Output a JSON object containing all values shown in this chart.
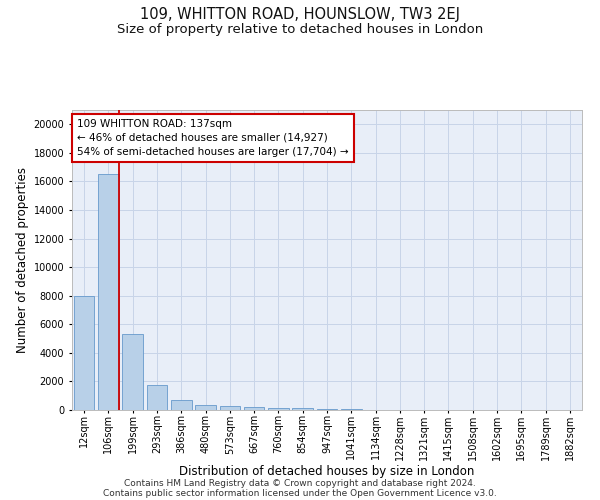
{
  "title": "109, WHITTON ROAD, HOUNSLOW, TW3 2EJ",
  "subtitle": "Size of property relative to detached houses in London",
  "xlabel": "Distribution of detached houses by size in London",
  "ylabel": "Number of detached properties",
  "categories": [
    "12sqm",
    "106sqm",
    "199sqm",
    "293sqm",
    "386sqm",
    "480sqm",
    "573sqm",
    "667sqm",
    "760sqm",
    "854sqm",
    "947sqm",
    "1041sqm",
    "1134sqm",
    "1228sqm",
    "1321sqm",
    "1415sqm",
    "1508sqm",
    "1602sqm",
    "1695sqm",
    "1789sqm",
    "1882sqm"
  ],
  "values": [
    8000,
    16500,
    5300,
    1750,
    700,
    380,
    290,
    210,
    170,
    130,
    80,
    50,
    30,
    20,
    10,
    5,
    0,
    0,
    0,
    0,
    0
  ],
  "bar_color": "#b8d0e8",
  "bar_edge_color": "#6699cc",
  "grid_color": "#c8d4e8",
  "property_line_color": "#cc0000",
  "property_line_x": 1.42,
  "annotation_line1": "109 WHITTON ROAD: 137sqm",
  "annotation_line2": "← 46% of detached houses are smaller (14,927)",
  "annotation_line3": "54% of semi-detached houses are larger (17,704) →",
  "annotation_box_facecolor": "#ffffff",
  "annotation_box_edgecolor": "#cc0000",
  "ylim": [
    0,
    21000
  ],
  "yticks": [
    0,
    2000,
    4000,
    6000,
    8000,
    10000,
    12000,
    14000,
    16000,
    18000,
    20000
  ],
  "footer_line1": "Contains HM Land Registry data © Crown copyright and database right 2024.",
  "footer_line2": "Contains public sector information licensed under the Open Government Licence v3.0.",
  "bg_color": "#e8eef8",
  "fig_bg_color": "#ffffff",
  "title_fontsize": 10.5,
  "subtitle_fontsize": 9.5,
  "ylabel_fontsize": 8.5,
  "xlabel_fontsize": 8.5,
  "tick_fontsize": 7,
  "annotation_fontsize": 7.5,
  "footer_fontsize": 6.5
}
